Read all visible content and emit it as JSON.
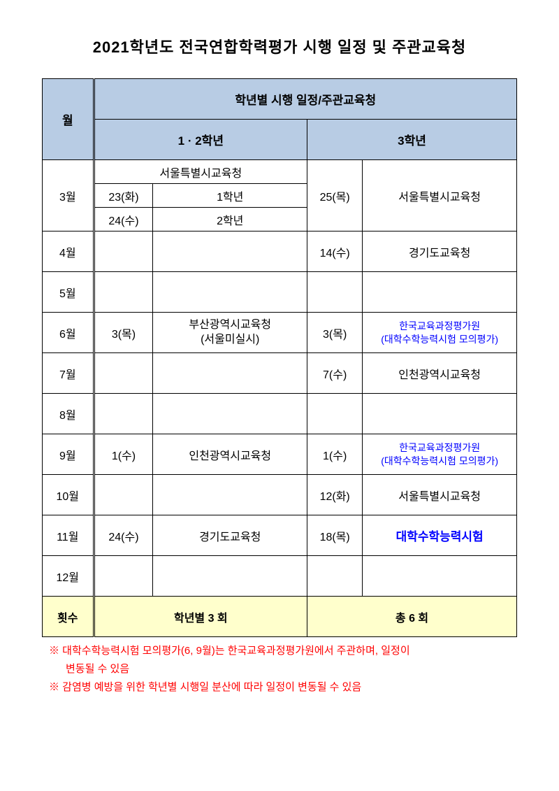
{
  "title": "2021학년도 전국연합학력평가 시행 일정 및 주관교육청",
  "headers": {
    "month": "월",
    "schedule_org": "학년별 시행 일정/주관교육청",
    "grade12": "1 · 2학년",
    "grade3": "3학년"
  },
  "rows": {
    "mar": {
      "month": "3월",
      "g12_header": "서울특별시교육청",
      "g12_sub1_date": "23(화)",
      "g12_sub1_grade": "1학년",
      "g12_sub2_date": "24(수)",
      "g12_sub2_grade": "2학년",
      "g3_date": "25(목)",
      "g3_org": "서울특별시교육청"
    },
    "apr": {
      "month": "4월",
      "g3_date": "14(수)",
      "g3_org": "경기도교육청"
    },
    "may": {
      "month": "5월"
    },
    "jun": {
      "month": "6월",
      "g12_date": "3(목)",
      "g12_org_l1": "부산광역시교육청",
      "g12_org_l2": "(서울미실시)",
      "g3_date": "3(목)",
      "g3_org_l1": "한국교육과정평가원",
      "g3_org_l2": "(대학수학능력시험 모의평가)"
    },
    "jul": {
      "month": "7월",
      "g3_date": "7(수)",
      "g3_org": "인천광역시교육청"
    },
    "aug": {
      "month": "8월"
    },
    "sep": {
      "month": "9월",
      "g12_date": "1(수)",
      "g12_org": "인천광역시교육청",
      "g3_date": "1(수)",
      "g3_org_l1": "한국교육과정평가원",
      "g3_org_l2": "(대학수학능력시험 모의평가)"
    },
    "oct": {
      "month": "10월",
      "g3_date": "12(화)",
      "g3_org": "서울특별시교육청"
    },
    "nov": {
      "month": "11월",
      "g12_date": "24(수)",
      "g12_org": "경기도교육청",
      "g3_date": "18(목)",
      "g3_org": "대학수학능력시험"
    },
    "dec": {
      "month": "12월"
    }
  },
  "summary": {
    "label": "횟수",
    "g12": "학년별 3 회",
    "g3": "총 6 회"
  },
  "notes": {
    "n1a": "※ 대학수학능력시험 모의평가(6, 9월)는 한국교육과정평가원에서 주관하며, 일정이",
    "n1b": "변동될 수 있음",
    "n2": "※ 감염병 예방을 위한 학년별 시행일 분산에 따라 일정이 변동될 수 있음"
  },
  "style": {
    "header_bg": "#b8cce4",
    "summary_bg": "#ffffcc",
    "blue": "#0000ff",
    "red": "#ff0000"
  }
}
